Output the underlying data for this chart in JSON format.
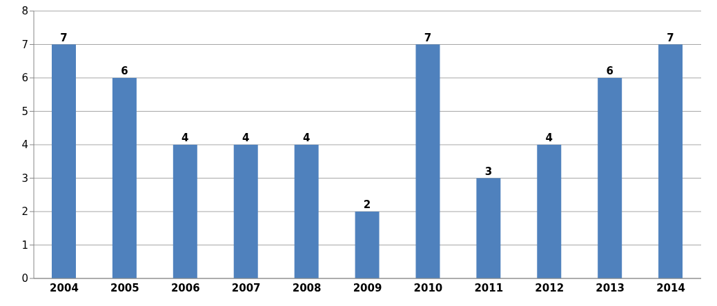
{
  "chart_data": {
    "type": "bar",
    "categories": [
      "2004",
      "2005",
      "2006",
      "2007",
      "2008",
      "2009",
      "2010",
      "2011",
      "2012",
      "2013",
      "2014"
    ],
    "values": [
      7,
      6,
      4,
      4,
      4,
      2,
      7,
      3,
      4,
      6,
      7
    ],
    "color": "#4f81bd",
    "ylim": [
      0,
      8
    ],
    "yticks": [
      0,
      1,
      2,
      3,
      4,
      5,
      6,
      7,
      8
    ],
    "grid": "y",
    "data_labels": true
  }
}
